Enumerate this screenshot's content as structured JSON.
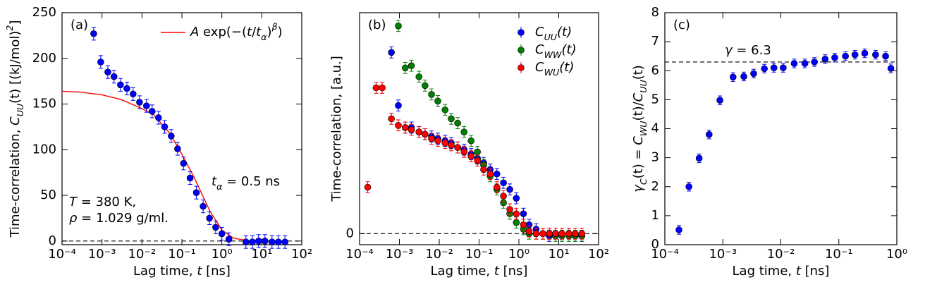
{
  "chart_data": [
    {
      "type": "scatter",
      "panel": "(a)",
      "xscale": "log",
      "xlabel": [
        {
          "t": "Lag time, "
        },
        {
          "t": "t",
          "s": "it"
        },
        {
          "t": " [ns]"
        }
      ],
      "ylabel": [
        {
          "t": "Time-correlation, "
        },
        {
          "t": "C",
          "s": "it"
        },
        {
          "t": "UU",
          "s": "sub"
        },
        {
          "t": "(t) [(kJ/mol)"
        },
        {
          "t": "2",
          "s": "sup"
        },
        {
          "t": "]"
        }
      ],
      "xlim": [
        0.0001,
        100
      ],
      "xticks": [
        {
          "value": 0.0001,
          "label": "10⁻⁴"
        },
        {
          "value": 0.001,
          "label": "10⁻³"
        },
        {
          "value": 0.01,
          "label": "10⁻²"
        },
        {
          "value": 0.1,
          "label": "10⁻¹"
        },
        {
          "value": 1,
          "label": "10⁰"
        },
        {
          "value": 10,
          "label": "10¹"
        },
        {
          "value": 100,
          "label": "10²"
        }
      ],
      "ylim": [
        -4,
        250
      ],
      "yticks": [
        0,
        50,
        100,
        150,
        200,
        250
      ],
      "hline": 0,
      "legend": "upper right",
      "fit": {
        "name": [
          {
            "t": "A",
            "s": "it"
          },
          {
            "t": " exp(−("
          },
          {
            "t": "t",
            "s": "it"
          },
          {
            "t": "/"
          },
          {
            "t": "t",
            "s": "it"
          },
          {
            "t": "α",
            "s": "sub"
          },
          {
            "t": ")"
          },
          {
            "t": "β",
            "s": "sup"
          },
          {
            "t": ")"
          }
        ],
        "color": "#ff0000",
        "x": [
          0.0001,
          0.0003,
          0.001,
          0.003,
          0.01,
          0.02,
          0.05,
          0.1,
          0.2,
          0.5,
          1,
          2,
          5,
          10
        ],
        "values": [
          164,
          163,
          160,
          155,
          145,
          138,
          118,
          95,
          70,
          33,
          12,
          3,
          0.2,
          0
        ]
      },
      "annotations": [
        [
          {
            "t": "t",
            "s": "it"
          },
          {
            "t": "α",
            "s": "sub"
          },
          {
            "t": " = 0.5 ns"
          }
        ],
        [
          {
            "t": "T",
            "s": "it"
          },
          {
            "t": " = 380 K,"
          }
        ],
        [
          {
            "t": "ρ",
            "s": "it"
          },
          {
            "t": " = 1.029 g/ml."
          }
        ]
      ],
      "series": [
        {
          "color": "#0000ff",
          "error": 7,
          "x": [
            0.00062,
            0.00093,
            0.0014,
            0.002,
            0.0029,
            0.0042,
            0.006,
            0.0087,
            0.013,
            0.018,
            0.026,
            0.037,
            0.054,
            0.078,
            0.11,
            0.16,
            0.23,
            0.34,
            0.49,
            0.7,
            1.0,
            1.5,
            4.0,
            5.8,
            8.3,
            12,
            18,
            26,
            38
          ],
          "values": [
            227,
            196,
            185,
            180,
            171,
            167,
            161,
            152,
            148,
            142,
            135,
            125,
            115,
            101,
            85,
            69,
            53,
            38,
            25,
            15,
            8,
            2,
            -1,
            -1,
            0,
            0,
            -1,
            -1,
            -1
          ]
        }
      ]
    },
    {
      "type": "scatter",
      "panel": "(b)",
      "xscale": "log",
      "xlabel": [
        {
          "t": "Lag time, "
        },
        {
          "t": "t",
          "s": "it"
        },
        {
          "t": " [ns]"
        }
      ],
      "ylabel": [
        {
          "t": "Time-correlation, [a.u.]"
        }
      ],
      "xlim": [
        0.0001,
        100
      ],
      "xticks": [
        {
          "value": 0.0001,
          "label": "10⁻⁴"
        },
        {
          "value": 0.001,
          "label": "10⁻³"
        },
        {
          "value": 0.01,
          "label": "10⁻²"
        },
        {
          "value": 0.1,
          "label": "10⁻¹"
        },
        {
          "value": 1,
          "label": "10⁰"
        },
        {
          "value": 10,
          "label": "10¹"
        },
        {
          "value": 100,
          "label": "10²"
        }
      ],
      "ylim": [
        -0.05,
        1
      ],
      "yticks": [
        0
      ],
      "hline": 0,
      "legend": "upper right",
      "series": [
        {
          "name": [
            {
              "t": "C",
              "s": "it"
            },
            {
              "t": "UU",
              "s": "sub"
            },
            {
              "t": "(t)",
              "s": "it"
            }
          ],
          "color": "#0000ff",
          "error": 0.025,
          "x": [
            0.00063,
            0.00094,
            0.0014,
            0.002,
            0.0031,
            0.0044,
            0.0064,
            0.0092,
            0.014,
            0.02,
            0.029,
            0.042,
            0.063,
            0.091,
            0.13,
            0.19,
            0.28,
            0.41,
            0.59,
            0.86,
            1.3,
            1.8,
            2.7,
            4.0,
            5.8,
            8.3,
            12,
            18,
            26,
            38
          ],
          "values": [
            0.82,
            0.58,
            0.48,
            0.48,
            0.46,
            0.45,
            0.44,
            0.43,
            0.42,
            0.41,
            0.39,
            0.38,
            0.36,
            0.34,
            0.32,
            0.29,
            0.27,
            0.23,
            0.2,
            0.16,
            0.09,
            0.04,
            0.02,
            0,
            -0.01,
            0,
            0,
            0,
            -0.01,
            -0.01
          ]
        },
        {
          "name": [
            {
              "t": "C",
              "s": "it"
            },
            {
              "t": "WW",
              "s": "sub"
            },
            {
              "t": "(t)",
              "s": "it"
            }
          ],
          "color": "#008000",
          "error": 0.025,
          "x": [
            0.00094,
            0.0014,
            0.002,
            0.0031,
            0.0044,
            0.0064,
            0.0092,
            0.014,
            0.02,
            0.029,
            0.042,
            0.063,
            0.091,
            0.13,
            0.19,
            0.28,
            0.41,
            0.59,
            0.86,
            1.3,
            1.8,
            2.7,
            4.0,
            5.8,
            8.3,
            12,
            18,
            26,
            38
          ],
          "values": [
            0.94,
            0.75,
            0.76,
            0.71,
            0.67,
            0.63,
            0.6,
            0.56,
            0.52,
            0.5,
            0.46,
            0.42,
            0.37,
            0.31,
            0.26,
            0.2,
            0.14,
            0.09,
            0.05,
            0.02,
            0,
            0,
            0,
            0,
            -0.01,
            -0.01,
            -0.01,
            -0.01,
            -0.01
          ]
        },
        {
          "name": [
            {
              "t": "C",
              "s": "it"
            },
            {
              "t": "WU",
              "s": "sub"
            },
            {
              "t": "(t)",
              "s": "it"
            }
          ],
          "color": "#ff0000",
          "error": 0.025,
          "x": [
            0.00016,
            0.00026,
            0.00037,
            0.00063,
            0.00094,
            0.0014,
            0.002,
            0.0031,
            0.0044,
            0.0064,
            0.0092,
            0.014,
            0.02,
            0.029,
            0.042,
            0.063,
            0.091,
            0.13,
            0.19,
            0.28,
            0.41,
            0.59,
            0.86,
            1.3,
            1.8,
            2.7,
            4.0,
            5.8,
            8.3,
            12,
            18,
            26,
            38
          ],
          "values": [
            0.21,
            0.66,
            0.66,
            0.52,
            0.49,
            0.48,
            0.47,
            0.46,
            0.45,
            0.43,
            0.42,
            0.41,
            0.4,
            0.39,
            0.37,
            0.35,
            0.33,
            0.29,
            0.27,
            0.21,
            0.17,
            0.11,
            0.09,
            0.04,
            0.01,
            0,
            0,
            0,
            0,
            0,
            0,
            0,
            0
          ]
        }
      ]
    },
    {
      "type": "scatter",
      "panel": "(c)",
      "xscale": "log",
      "xlabel": [
        {
          "t": "Lag time, "
        },
        {
          "t": "t",
          "s": "it"
        },
        {
          "t": " [ns]"
        }
      ],
      "ylabel": [
        {
          "t": "γ",
          "s": "it"
        },
        {
          "t": "C",
          "s": "sub"
        },
        {
          "t": "(t) = "
        },
        {
          "t": "C",
          "s": "it"
        },
        {
          "t": "WU",
          "s": "sub"
        },
        {
          "t": "(t)/"
        },
        {
          "t": "C",
          "s": "it"
        },
        {
          "t": "UU",
          "s": "sub"
        },
        {
          "t": "(t)"
        }
      ],
      "xlim": [
        0.0001,
        1
      ],
      "xticks": [
        {
          "value": 0.0001,
          "label": "10⁻⁴"
        },
        {
          "value": 0.001,
          "label": "10⁻³"
        },
        {
          "value": 0.01,
          "label": "10⁻²"
        },
        {
          "value": 0.1,
          "label": "10⁻¹"
        },
        {
          "value": 1,
          "label": "10⁰"
        }
      ],
      "ylim": [
        0,
        8
      ],
      "yticks": [
        0,
        1,
        2,
        3,
        4,
        5,
        6,
        7,
        8
      ],
      "hline": 6.3,
      "annotations": [
        [
          {
            "t": "γ",
            "s": "it"
          },
          {
            "t": " = 6.3"
          }
        ]
      ],
      "series": [
        {
          "color": "#0000ff",
          "error": 0.15,
          "x": [
            0.000175,
            0.00026,
            0.00039,
            0.00058,
            0.00089,
            0.0015,
            0.0023,
            0.0034,
            0.0052,
            0.0076,
            0.011,
            0.017,
            0.026,
            0.038,
            0.058,
            0.085,
            0.13,
            0.19,
            0.28,
            0.43,
            0.64,
            0.79
          ],
          "values": [
            0.51,
            2.0,
            2.98,
            3.8,
            4.98,
            5.78,
            5.8,
            5.9,
            6.07,
            6.1,
            6.1,
            6.25,
            6.25,
            6.3,
            6.4,
            6.45,
            6.5,
            6.55,
            6.6,
            6.55,
            6.5,
            6.08
          ]
        }
      ]
    }
  ]
}
